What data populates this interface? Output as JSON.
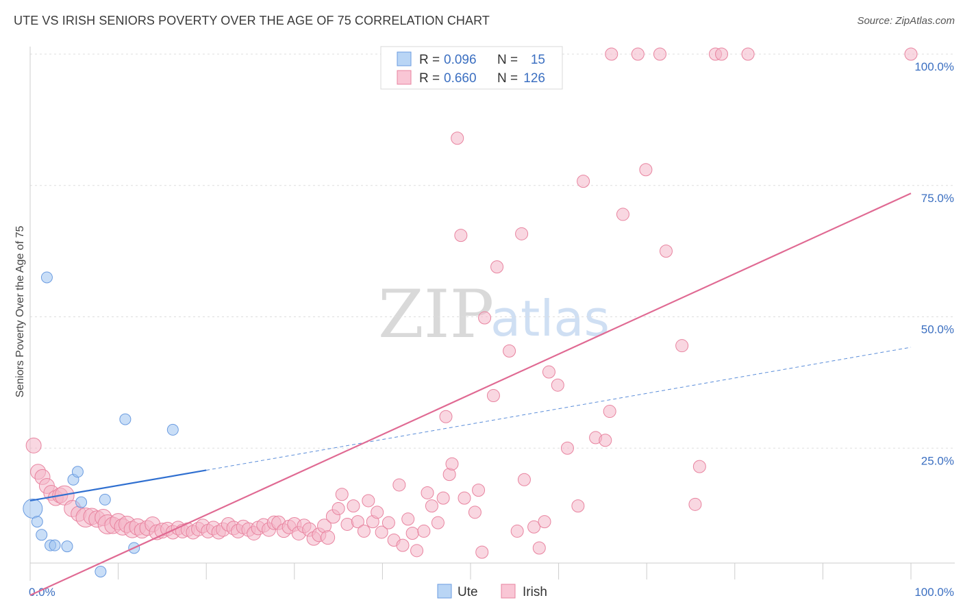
{
  "header": {
    "title": "UTE VS IRISH SENIORS POVERTY OVER THE AGE OF 75 CORRELATION CHART",
    "source": "Source: ZipAtlas.com"
  },
  "watermark": {
    "zip": "ZIP",
    "atlas": "atlas"
  },
  "legend": {
    "r_label": "R =",
    "n_label": "N =",
    "rows": [
      {
        "series": "Ute",
        "r": "0.096",
        "n": "15",
        "color": "#9cc3f0"
      },
      {
        "series": "Irish",
        "r": "0.660",
        "n": "126",
        "color": "#f4b6c8"
      }
    ]
  },
  "bottom_legend": [
    {
      "label": "Ute",
      "color": "#9cc3f0"
    },
    {
      "label": "Irish",
      "color": "#f4b6c8"
    }
  ],
  "chart_data": {
    "type": "scatter",
    "title": "UTE VS IRISH SENIORS POVERTY OVER THE AGE OF 75 CORRELATION CHART",
    "xlabel": "",
    "ylabel": "Seniors Poverty Over the Age of 75",
    "xlim": [
      0,
      100
    ],
    "ylim": [
      0,
      100
    ],
    "x_tick_labels": [
      {
        "x": 0,
        "label": "0.0%"
      },
      {
        "x": 100,
        "label": "100.0%"
      }
    ],
    "y_tick_labels": [
      {
        "y": 25,
        "label": "25.0%"
      },
      {
        "y": 50,
        "label": "50.0%"
      },
      {
        "y": 75,
        "label": "75.0%"
      },
      {
        "y": 100,
        "label": "100.0%"
      }
    ],
    "grid": "horizontal-dashed",
    "legend_position": "top-center",
    "series": [
      {
        "name": "Ute",
        "color": "#9cc3f0",
        "stroke": "#6a9be0",
        "trend": {
          "x0": 0,
          "y0": 15.0,
          "x1": 20,
          "y1": 20.8,
          "dash_to_x": 100,
          "dash_to_y": 44.2,
          "color": "#2f6fd0"
        },
        "points": [
          {
            "x": 0.3,
            "y": 13.5,
            "r": 14
          },
          {
            "x": 0.8,
            "y": 11.0,
            "r": 8
          },
          {
            "x": 1.3,
            "y": 8.5,
            "r": 8
          },
          {
            "x": 1.9,
            "y": 57.5,
            "r": 8
          },
          {
            "x": 2.3,
            "y": 6.5,
            "r": 8
          },
          {
            "x": 2.8,
            "y": 6.5,
            "r": 8
          },
          {
            "x": 4.2,
            "y": 6.3,
            "r": 8
          },
          {
            "x": 4.9,
            "y": 19.0,
            "r": 8
          },
          {
            "x": 5.4,
            "y": 20.5,
            "r": 8
          },
          {
            "x": 5.8,
            "y": 14.7,
            "r": 8
          },
          {
            "x": 8.0,
            "y": 1.5,
            "r": 8
          },
          {
            "x": 8.5,
            "y": 15.2,
            "r": 8
          },
          {
            "x": 10.8,
            "y": 30.5,
            "r": 8
          },
          {
            "x": 11.8,
            "y": 6.0,
            "r": 8
          },
          {
            "x": 16.2,
            "y": 28.5,
            "r": 8
          }
        ]
      },
      {
        "name": "Irish",
        "color": "#f4b6c8",
        "stroke": "#e8839f",
        "trend": {
          "x0": 0,
          "y0": -3.0,
          "x1": 100,
          "y1": 73.5,
          "color": "#e06a93"
        },
        "points": [
          {
            "x": 0.4,
            "y": 25.5,
            "r": 11
          },
          {
            "x": 0.9,
            "y": 20.5,
            "r": 11
          },
          {
            "x": 1.4,
            "y": 19.5,
            "r": 11
          },
          {
            "x": 1.9,
            "y": 17.8,
            "r": 11
          },
          {
            "x": 2.4,
            "y": 16.5,
            "r": 11
          },
          {
            "x": 2.9,
            "y": 15.5,
            "r": 11
          },
          {
            "x": 3.4,
            "y": 16.0,
            "r": 11
          },
          {
            "x": 3.9,
            "y": 16.0,
            "r": 14
          },
          {
            "x": 4.8,
            "y": 13.5,
            "r": 12
          },
          {
            "x": 5.5,
            "y": 12.5,
            "r": 11
          },
          {
            "x": 6.3,
            "y": 11.8,
            "r": 14
          },
          {
            "x": 7.0,
            "y": 12.0,
            "r": 12
          },
          {
            "x": 7.6,
            "y": 11.5,
            "r": 12
          },
          {
            "x": 8.3,
            "y": 11.8,
            "r": 12
          },
          {
            "x": 8.8,
            "y": 10.5,
            "r": 14
          },
          {
            "x": 9.4,
            "y": 10.3,
            "r": 12
          },
          {
            "x": 10.0,
            "y": 11.0,
            "r": 12
          },
          {
            "x": 10.5,
            "y": 10.0,
            "r": 12
          },
          {
            "x": 11.0,
            "y": 10.5,
            "r": 12
          },
          {
            "x": 11.6,
            "y": 9.5,
            "r": 12
          },
          {
            "x": 12.2,
            "y": 10.0,
            "r": 12
          },
          {
            "x": 12.7,
            "y": 9.3,
            "r": 11
          },
          {
            "x": 13.3,
            "y": 9.8,
            "r": 11
          },
          {
            "x": 13.9,
            "y": 10.5,
            "r": 11
          },
          {
            "x": 14.4,
            "y": 9.0,
            "r": 11
          },
          {
            "x": 15.0,
            "y": 9.3,
            "r": 11
          },
          {
            "x": 15.6,
            "y": 9.6,
            "r": 10
          },
          {
            "x": 16.2,
            "y": 9.0,
            "r": 10
          },
          {
            "x": 16.8,
            "y": 9.8,
            "r": 10
          },
          {
            "x": 17.3,
            "y": 9.2,
            "r": 10
          },
          {
            "x": 17.9,
            "y": 9.5,
            "r": 10
          },
          {
            "x": 18.5,
            "y": 9.0,
            "r": 10
          },
          {
            "x": 19.1,
            "y": 9.6,
            "r": 10
          },
          {
            "x": 19.6,
            "y": 10.2,
            "r": 10
          },
          {
            "x": 20.2,
            "y": 9.2,
            "r": 10
          },
          {
            "x": 20.8,
            "y": 9.8,
            "r": 10
          },
          {
            "x": 21.4,
            "y": 9.0,
            "r": 10
          },
          {
            "x": 21.9,
            "y": 9.5,
            "r": 10
          },
          {
            "x": 22.5,
            "y": 10.5,
            "r": 10
          },
          {
            "x": 23.1,
            "y": 9.8,
            "r": 10
          },
          {
            "x": 23.6,
            "y": 9.2,
            "r": 10
          },
          {
            "x": 24.2,
            "y": 10.0,
            "r": 10
          },
          {
            "x": 24.8,
            "y": 9.5,
            "r": 10
          },
          {
            "x": 25.4,
            "y": 8.8,
            "r": 10
          },
          {
            "x": 25.9,
            "y": 9.8,
            "r": 10
          },
          {
            "x": 26.5,
            "y": 10.3,
            "r": 10
          },
          {
            "x": 27.1,
            "y": 9.5,
            "r": 10
          },
          {
            "x": 27.7,
            "y": 10.8,
            "r": 10
          },
          {
            "x": 28.2,
            "y": 10.8,
            "r": 10
          },
          {
            "x": 28.8,
            "y": 9.3,
            "r": 10
          },
          {
            "x": 29.4,
            "y": 10.0,
            "r": 10
          },
          {
            "x": 30.0,
            "y": 10.5,
            "r": 10
          },
          {
            "x": 30.5,
            "y": 8.8,
            "r": 10
          },
          {
            "x": 31.1,
            "y": 10.2,
            "r": 10
          },
          {
            "x": 31.7,
            "y": 9.5,
            "r": 10
          },
          {
            "x": 32.2,
            "y": 7.8,
            "r": 10
          },
          {
            "x": 32.8,
            "y": 8.5,
            "r": 10
          },
          {
            "x": 33.4,
            "y": 10.2,
            "r": 10
          },
          {
            "x": 33.8,
            "y": 8.0,
            "r": 10
          },
          {
            "x": 34.4,
            "y": 12.0,
            "r": 10
          },
          {
            "x": 35.0,
            "y": 13.5,
            "r": 9
          },
          {
            "x": 35.4,
            "y": 16.2,
            "r": 9
          },
          {
            "x": 36.0,
            "y": 10.5,
            "r": 9
          },
          {
            "x": 36.7,
            "y": 14.0,
            "r": 9
          },
          {
            "x": 37.2,
            "y": 11.0,
            "r": 9
          },
          {
            "x": 37.9,
            "y": 9.2,
            "r": 9
          },
          {
            "x": 38.4,
            "y": 15.0,
            "r": 9
          },
          {
            "x": 38.9,
            "y": 11.0,
            "r": 9
          },
          {
            "x": 39.4,
            "y": 12.8,
            "r": 9
          },
          {
            "x": 39.9,
            "y": 9.0,
            "r": 9
          },
          {
            "x": 40.7,
            "y": 10.8,
            "r": 9
          },
          {
            "x": 41.3,
            "y": 7.5,
            "r": 9
          },
          {
            "x": 41.9,
            "y": 18.0,
            "r": 9
          },
          {
            "x": 42.3,
            "y": 6.5,
            "r": 9
          },
          {
            "x": 42.9,
            "y": 11.5,
            "r": 9
          },
          {
            "x": 43.4,
            "y": 8.8,
            "r": 9
          },
          {
            "x": 43.9,
            "y": 5.5,
            "r": 9
          },
          {
            "x": 44.7,
            "y": 9.2,
            "r": 9
          },
          {
            "x": 45.1,
            "y": 16.5,
            "r": 9
          },
          {
            "x": 45.6,
            "y": 14.0,
            "r": 9
          },
          {
            "x": 46.3,
            "y": 10.8,
            "r": 9
          },
          {
            "x": 46.9,
            "y": 15.5,
            "r": 9
          },
          {
            "x": 47.2,
            "y": 31.0,
            "r": 9
          },
          {
            "x": 47.6,
            "y": 20.0,
            "r": 9
          },
          {
            "x": 47.9,
            "y": 22.0,
            "r": 9
          },
          {
            "x": 48.5,
            "y": 84.0,
            "r": 9
          },
          {
            "x": 48.9,
            "y": 65.5,
            "r": 9
          },
          {
            "x": 49.3,
            "y": 15.5,
            "r": 9
          },
          {
            "x": 50.5,
            "y": 12.8,
            "r": 9
          },
          {
            "x": 50.9,
            "y": 17.0,
            "r": 9
          },
          {
            "x": 51.3,
            "y": 5.2,
            "r": 9
          },
          {
            "x": 51.6,
            "y": 49.8,
            "r": 9
          },
          {
            "x": 52.6,
            "y": 35.0,
            "r": 9
          },
          {
            "x": 53.0,
            "y": 59.5,
            "r": 9
          },
          {
            "x": 54.4,
            "y": 43.5,
            "r": 9
          },
          {
            "x": 55.3,
            "y": 9.2,
            "r": 9
          },
          {
            "x": 55.8,
            "y": 65.8,
            "r": 9
          },
          {
            "x": 56.1,
            "y": 19.0,
            "r": 9
          },
          {
            "x": 57.2,
            "y": 10.0,
            "r": 9
          },
          {
            "x": 57.8,
            "y": 6.0,
            "r": 9
          },
          {
            "x": 58.4,
            "y": 11.0,
            "r": 9
          },
          {
            "x": 58.9,
            "y": 39.5,
            "r": 9
          },
          {
            "x": 59.9,
            "y": 37.0,
            "r": 9
          },
          {
            "x": 61.0,
            "y": 25.0,
            "r": 9
          },
          {
            "x": 62.2,
            "y": 14.0,
            "r": 9
          },
          {
            "x": 62.8,
            "y": 75.8,
            "r": 9
          },
          {
            "x": 64.2,
            "y": 27.0,
            "r": 9
          },
          {
            "x": 65.3,
            "y": 26.5,
            "r": 9
          },
          {
            "x": 65.8,
            "y": 32.0,
            "r": 9
          },
          {
            "x": 67.3,
            "y": 69.5,
            "r": 9
          },
          {
            "x": 69.9,
            "y": 78.0,
            "r": 9
          },
          {
            "x": 72.2,
            "y": 62.5,
            "r": 9
          },
          {
            "x": 74.0,
            "y": 44.5,
            "r": 9
          },
          {
            "x": 75.5,
            "y": 14.3,
            "r": 9
          },
          {
            "x": 76.0,
            "y": 21.5,
            "r": 9
          },
          {
            "x": 66.0,
            "y": 100,
            "r": 9
          },
          {
            "x": 69.0,
            "y": 100,
            "r": 9
          },
          {
            "x": 71.5,
            "y": 100,
            "r": 9
          },
          {
            "x": 77.8,
            "y": 100,
            "r": 9
          },
          {
            "x": 78.5,
            "y": 100,
            "r": 9
          },
          {
            "x": 81.5,
            "y": 100,
            "r": 9
          },
          {
            "x": 100.0,
            "y": 100,
            "r": 9
          }
        ]
      }
    ]
  }
}
